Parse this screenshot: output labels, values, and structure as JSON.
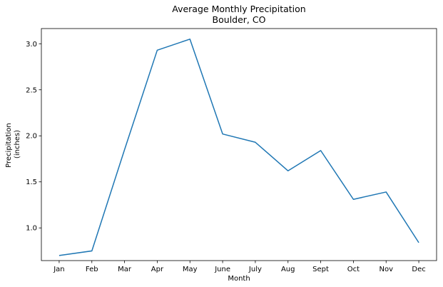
{
  "chart_data": {
    "type": "line",
    "title": "Average Monthly Precipitation",
    "subtitle": "Boulder, CO",
    "xlabel": "Month",
    "ylabel": [
      "Precipitation",
      "(inches)"
    ],
    "categories": [
      "Jan",
      "Feb",
      "Mar",
      "Apr",
      "May",
      "June",
      "July",
      "Aug",
      "Sept",
      "Oct",
      "Nov",
      "Dec"
    ],
    "values": [
      0.7,
      0.75,
      1.85,
      2.93,
      3.05,
      2.02,
      1.93,
      1.62,
      1.84,
      1.31,
      1.39,
      0.84
    ],
    "ylim": [
      0.645,
      3.165
    ],
    "yticks": [
      1.0,
      1.5,
      2.0,
      2.5,
      3.0
    ],
    "ytick_labels": [
      "1.0",
      "1.5",
      "2.0",
      "2.5",
      "3.0"
    ],
    "grid": false,
    "line_color": "#1f77b4"
  }
}
